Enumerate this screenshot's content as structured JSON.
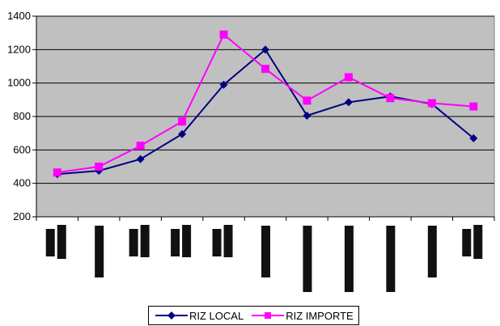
{
  "chart_data": {
    "type": "line",
    "title": "",
    "xlabel": "",
    "ylabel": "",
    "categories": [
      "",
      "",
      "",
      "",
      "",
      "",
      "",
      "",
      "",
      "",
      ""
    ],
    "ylim": [
      200,
      1400
    ],
    "yticks": [
      200,
      400,
      600,
      800,
      1000,
      1200,
      1400
    ],
    "grid": true,
    "plot_background": "#c0c0c0",
    "legend_position": "bottom",
    "series": [
      {
        "name": "RIZ LOCAL",
        "color": "#000080",
        "marker": "diamond",
        "values": [
          455,
          475,
          545,
          695,
          990,
          1200,
          805,
          885,
          920,
          875,
          670
        ]
      },
      {
        "name": "RIZ IMPORTE",
        "color": "#ff00ff",
        "marker": "square",
        "values": [
          465,
          500,
          625,
          770,
          1290,
          1085,
          895,
          1035,
          910,
          880,
          860
        ]
      }
    ]
  }
}
